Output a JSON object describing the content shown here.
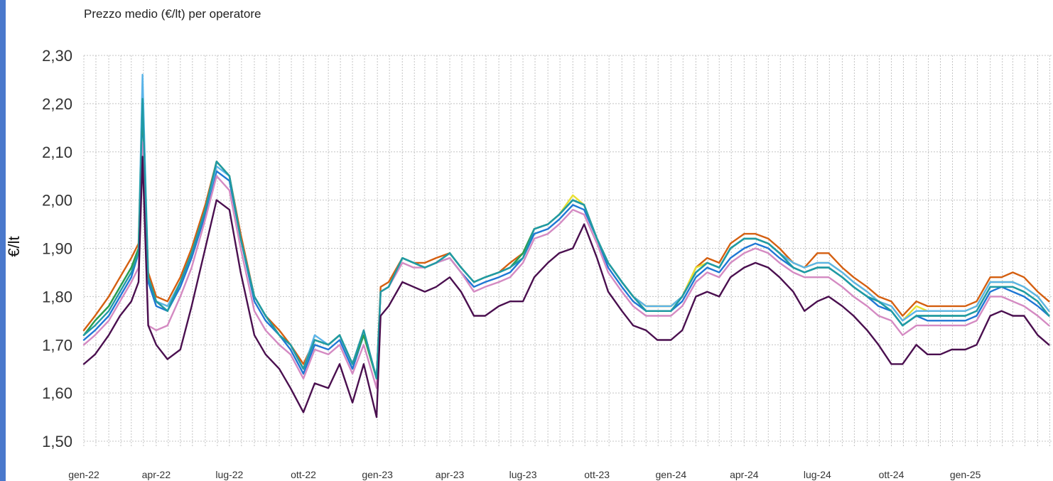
{
  "chart_data": {
    "type": "line",
    "title": "Prezzo medio (€/lt) per operatore",
    "ylabel": "€/lt",
    "xlabel": "",
    "ylim": [
      1.5,
      2.3
    ],
    "y_ticks": [
      "1,50",
      "1,60",
      "1,70",
      "1,80",
      "1,90",
      "2,00",
      "2,10",
      "2,20",
      "2,30"
    ],
    "x_ticks": [
      "gen-22",
      "apr-22",
      "lug-22",
      "ott-22",
      "gen-23",
      "apr-23",
      "lug-23",
      "ott-23",
      "gen-24",
      "apr-24",
      "lug-24",
      "ott-24",
      "gen-25"
    ],
    "grid": true,
    "legend": "none",
    "x_dates": [
      "2022-01-01",
      "2022-01-15",
      "2022-02-01",
      "2022-02-15",
      "2022-03-01",
      "2022-03-10",
      "2022-03-15",
      "2022-03-22",
      "2022-04-01",
      "2022-04-15",
      "2022-05-01",
      "2022-05-15",
      "2022-06-01",
      "2022-06-15",
      "2022-07-01",
      "2022-07-15",
      "2022-08-01",
      "2022-08-15",
      "2022-09-01",
      "2022-09-15",
      "2022-10-01",
      "2022-10-15",
      "2022-11-01",
      "2022-11-15",
      "2022-12-01",
      "2022-12-15",
      "2022-12-31",
      "2023-01-05",
      "2023-01-15",
      "2023-02-01",
      "2023-02-15",
      "2023-03-01",
      "2023-03-15",
      "2023-04-01",
      "2023-04-15",
      "2023-05-01",
      "2023-05-15",
      "2023-06-01",
      "2023-06-15",
      "2023-07-01",
      "2023-07-15",
      "2023-08-01",
      "2023-08-15",
      "2023-09-01",
      "2023-09-15",
      "2023-10-01",
      "2023-10-15",
      "2023-11-01",
      "2023-11-15",
      "2023-12-01",
      "2023-12-15",
      "2024-01-01",
      "2024-01-15",
      "2024-02-01",
      "2024-02-15",
      "2024-03-01",
      "2024-03-15",
      "2024-04-01",
      "2024-04-15",
      "2024-05-01",
      "2024-05-15",
      "2024-06-01",
      "2024-06-15",
      "2024-07-01",
      "2024-07-15",
      "2024-08-01",
      "2024-08-15",
      "2024-09-01",
      "2024-09-15",
      "2024-10-01",
      "2024-10-15",
      "2024-11-01",
      "2024-11-15",
      "2024-12-01",
      "2024-12-15",
      "2025-01-01",
      "2025-01-15",
      "2025-02-01",
      "2025-02-15",
      "2025-03-01",
      "2025-03-15",
      "2025-04-01",
      "2025-04-15"
    ],
    "series": [
      {
        "color": "#1f77d4",
        "values": [
          1.71,
          1.73,
          1.76,
          1.8,
          1.84,
          1.89,
          2.19,
          1.83,
          1.78,
          1.77,
          1.82,
          1.88,
          1.97,
          2.06,
          2.04,
          1.92,
          1.79,
          1.75,
          1.72,
          1.69,
          1.64,
          1.7,
          1.69,
          1.71,
          1.65,
          1.72,
          1.63,
          1.81,
          1.82,
          1.88,
          1.87,
          1.86,
          1.87,
          1.88,
          1.85,
          1.82,
          1.83,
          1.84,
          1.85,
          1.88,
          1.93,
          1.94,
          1.96,
          1.99,
          1.98,
          1.92,
          1.86,
          1.82,
          1.79,
          1.77,
          1.77,
          1.77,
          1.79,
          1.84,
          1.86,
          1.85,
          1.88,
          1.9,
          1.91,
          1.9,
          1.88,
          1.86,
          1.85,
          1.86,
          1.86,
          1.84,
          1.82,
          1.8,
          1.78,
          1.77,
          1.74,
          1.76,
          1.75,
          1.75,
          1.75,
          1.75,
          1.76,
          1.81,
          1.82,
          1.81,
          1.8,
          1.78,
          1.76
        ]
      },
      {
        "color": "#d45f10",
        "values": [
          1.73,
          1.76,
          1.8,
          1.84,
          1.88,
          1.91,
          2.2,
          1.85,
          1.8,
          1.79,
          1.84,
          1.9,
          1.99,
          2.08,
          2.05,
          1.93,
          1.8,
          1.76,
          1.73,
          1.7,
          1.66,
          1.71,
          1.7,
          1.72,
          1.66,
          1.73,
          1.63,
          1.82,
          1.83,
          1.88,
          1.87,
          1.87,
          1.88,
          1.89,
          1.86,
          1.83,
          1.84,
          1.85,
          1.87,
          1.89,
          1.94,
          1.95,
          1.97,
          2.0,
          1.99,
          1.92,
          1.87,
          1.83,
          1.8,
          1.78,
          1.78,
          1.78,
          1.8,
          1.86,
          1.88,
          1.87,
          1.91,
          1.93,
          1.93,
          1.92,
          1.9,
          1.87,
          1.86,
          1.89,
          1.89,
          1.86,
          1.84,
          1.82,
          1.8,
          1.79,
          1.76,
          1.79,
          1.78,
          1.78,
          1.78,
          1.78,
          1.79,
          1.84,
          1.84,
          1.85,
          1.84,
          1.81,
          1.79
        ]
      },
      {
        "color": "#e8e033",
        "values": [
          1.72,
          1.75,
          1.78,
          1.82,
          1.86,
          1.9,
          2.23,
          1.84,
          1.79,
          1.78,
          1.83,
          1.89,
          1.98,
          2.08,
          2.05,
          1.92,
          1.8,
          1.76,
          1.72,
          1.7,
          1.65,
          1.71,
          1.7,
          1.72,
          1.66,
          1.72,
          1.63,
          1.81,
          1.82,
          1.88,
          1.87,
          1.86,
          1.87,
          1.89,
          1.86,
          1.83,
          1.84,
          1.85,
          1.86,
          1.89,
          1.94,
          1.95,
          1.97,
          2.01,
          1.99,
          1.92,
          1.87,
          1.83,
          1.8,
          1.78,
          1.78,
          1.78,
          1.8,
          1.86,
          1.87,
          1.86,
          1.9,
          1.92,
          1.92,
          1.91,
          1.89,
          1.87,
          1.86,
          1.87,
          1.87,
          1.85,
          1.83,
          1.81,
          1.79,
          1.78,
          1.75,
          1.78,
          1.77,
          1.77,
          1.77,
          1.77,
          1.78,
          1.83,
          1.83,
          1.83,
          1.82,
          1.8,
          1.77
        ]
      },
      {
        "color": "#5ab4e8",
        "values": [
          1.72,
          1.75,
          1.78,
          1.82,
          1.86,
          1.9,
          2.26,
          1.84,
          1.79,
          1.78,
          1.83,
          1.89,
          1.98,
          2.07,
          2.05,
          1.92,
          1.8,
          1.76,
          1.72,
          1.7,
          1.65,
          1.72,
          1.7,
          1.72,
          1.66,
          1.73,
          1.63,
          1.81,
          1.82,
          1.88,
          1.87,
          1.86,
          1.87,
          1.89,
          1.86,
          1.83,
          1.84,
          1.85,
          1.86,
          1.89,
          1.94,
          1.95,
          1.97,
          2.0,
          1.99,
          1.92,
          1.87,
          1.83,
          1.8,
          1.78,
          1.78,
          1.78,
          1.8,
          1.85,
          1.87,
          1.86,
          1.9,
          1.92,
          1.92,
          1.91,
          1.89,
          1.87,
          1.86,
          1.87,
          1.87,
          1.85,
          1.83,
          1.81,
          1.79,
          1.78,
          1.75,
          1.77,
          1.77,
          1.77,
          1.77,
          1.77,
          1.78,
          1.83,
          1.83,
          1.83,
          1.82,
          1.8,
          1.77
        ]
      },
      {
        "color": "#2a9e4e",
        "values": [
          1.72,
          1.75,
          1.78,
          1.82,
          1.86,
          1.9,
          2.2,
          1.84,
          1.79,
          1.77,
          1.83,
          1.89,
          1.98,
          2.08,
          2.05,
          1.92,
          1.8,
          1.76,
          1.72,
          1.7,
          1.65,
          1.71,
          1.7,
          1.72,
          1.66,
          1.72,
          1.63,
          1.81,
          1.82,
          1.88,
          1.87,
          1.86,
          1.87,
          1.89,
          1.86,
          1.83,
          1.84,
          1.85,
          1.86,
          1.89,
          1.94,
          1.95,
          1.97,
          2.0,
          1.99,
          1.92,
          1.87,
          1.83,
          1.8,
          1.77,
          1.77,
          1.77,
          1.8,
          1.85,
          1.87,
          1.86,
          1.9,
          1.92,
          1.92,
          1.91,
          1.89,
          1.86,
          1.85,
          1.86,
          1.86,
          1.84,
          1.82,
          1.8,
          1.79,
          1.77,
          1.74,
          1.76,
          1.76,
          1.76,
          1.76,
          1.76,
          1.77,
          1.82,
          1.82,
          1.82,
          1.81,
          1.79,
          1.76
        ]
      },
      {
        "color": "#d48ac2",
        "values": [
          1.7,
          1.72,
          1.75,
          1.79,
          1.83,
          1.86,
          2.12,
          1.74,
          1.73,
          1.74,
          1.8,
          1.86,
          1.96,
          2.05,
          2.02,
          1.9,
          1.77,
          1.73,
          1.7,
          1.68,
          1.63,
          1.69,
          1.68,
          1.7,
          1.64,
          1.7,
          1.61,
          1.81,
          1.82,
          1.87,
          1.86,
          1.86,
          1.87,
          1.88,
          1.85,
          1.81,
          1.82,
          1.83,
          1.84,
          1.87,
          1.92,
          1.93,
          1.95,
          1.98,
          1.97,
          1.91,
          1.85,
          1.81,
          1.78,
          1.76,
          1.76,
          1.76,
          1.78,
          1.83,
          1.85,
          1.84,
          1.87,
          1.89,
          1.9,
          1.89,
          1.87,
          1.85,
          1.84,
          1.84,
          1.84,
          1.82,
          1.8,
          1.78,
          1.76,
          1.75,
          1.72,
          1.74,
          1.74,
          1.74,
          1.74,
          1.74,
          1.75,
          1.8,
          1.8,
          1.79,
          1.78,
          1.76,
          1.74
        ]
      },
      {
        "color": "#1f9aa6",
        "values": [
          1.72,
          1.74,
          1.77,
          1.81,
          1.85,
          1.89,
          2.21,
          1.84,
          1.79,
          1.77,
          1.83,
          1.89,
          1.98,
          2.08,
          2.05,
          1.92,
          1.8,
          1.76,
          1.72,
          1.7,
          1.65,
          1.71,
          1.7,
          1.72,
          1.66,
          1.73,
          1.63,
          1.81,
          1.82,
          1.88,
          1.87,
          1.86,
          1.87,
          1.89,
          1.86,
          1.83,
          1.84,
          1.85,
          1.86,
          1.88,
          1.94,
          1.95,
          1.97,
          2.0,
          1.99,
          1.92,
          1.87,
          1.83,
          1.8,
          1.77,
          1.77,
          1.77,
          1.8,
          1.85,
          1.87,
          1.86,
          1.9,
          1.92,
          1.92,
          1.91,
          1.89,
          1.86,
          1.85,
          1.86,
          1.86,
          1.84,
          1.82,
          1.8,
          1.79,
          1.77,
          1.74,
          1.76,
          1.76,
          1.76,
          1.76,
          1.76,
          1.77,
          1.82,
          1.82,
          1.82,
          1.81,
          1.79,
          1.76
        ]
      },
      {
        "color": "#4a0f4f",
        "values": [
          1.66,
          1.68,
          1.72,
          1.76,
          1.79,
          1.83,
          2.09,
          1.74,
          1.7,
          1.67,
          1.69,
          1.78,
          1.9,
          2.0,
          1.98,
          1.85,
          1.72,
          1.68,
          1.65,
          1.61,
          1.56,
          1.62,
          1.61,
          1.66,
          1.58,
          1.66,
          1.55,
          1.76,
          1.78,
          1.83,
          1.82,
          1.81,
          1.82,
          1.84,
          1.81,
          1.76,
          1.76,
          1.78,
          1.79,
          1.79,
          1.84,
          1.87,
          1.89,
          1.9,
          1.95,
          1.88,
          1.81,
          1.77,
          1.74,
          1.73,
          1.71,
          1.71,
          1.73,
          1.8,
          1.81,
          1.8,
          1.84,
          1.86,
          1.87,
          1.86,
          1.84,
          1.81,
          1.77,
          1.79,
          1.8,
          1.78,
          1.76,
          1.73,
          1.7,
          1.66,
          1.66,
          1.7,
          1.68,
          1.68,
          1.69,
          1.69,
          1.7,
          1.76,
          1.77,
          1.76,
          1.76,
          1.72,
          1.7
        ]
      }
    ]
  }
}
